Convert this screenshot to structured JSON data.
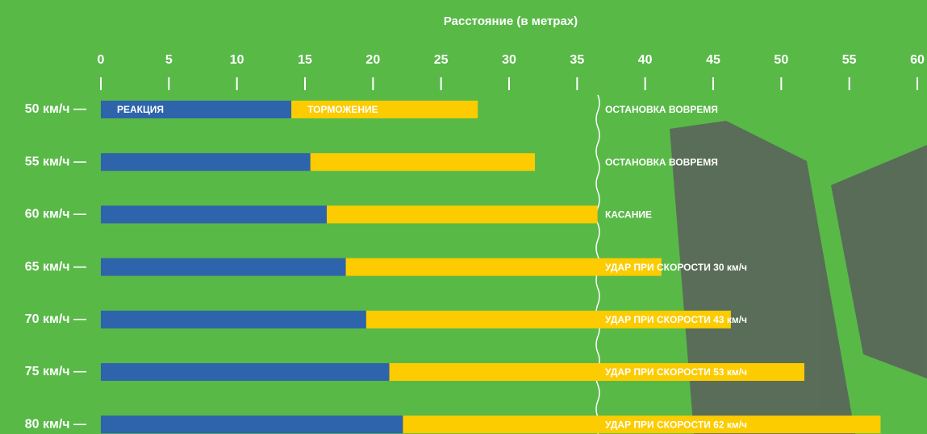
{
  "chart_data": {
    "type": "stacked-barh",
    "title": "Расстояние (в метрах)",
    "categories": [
      "50 км/ч —",
      "55 км/ч —",
      "60 км/ч —",
      "65 км/ч —",
      "70 км/ч —",
      "75 км/ч —",
      "80 км/ч —"
    ],
    "series": [
      {
        "name": "РЕАКЦИЯ",
        "color": "#2e64ab",
        "values": [
          14.0,
          15.4,
          16.6,
          18.0,
          19.5,
          21.2,
          22.2
        ]
      },
      {
        "name": "ТОРМОЖЕНИЕ",
        "color": "#fccb00",
        "values": [
          13.7,
          16.5,
          19.9,
          23.2,
          26.8,
          30.5,
          35.1
        ]
      }
    ],
    "annotations": [
      "ОСТАНОВКА ВОВРЕМЯ",
      "ОСТАНОВКА ВОВРЕМЯ",
      "КАСАНИЕ",
      "УДАР ПРИ СКОРОСТИ 30 км/ч",
      "УДАР ПРИ СКОРОСТИ 43 км/ч",
      "УДАР ПРИ СКОРОСТИ 53 км/ч",
      "УДАР ПРИ СКОРОСТИ 62 км/ч"
    ],
    "xlim": [
      0,
      60
    ],
    "xticks": [
      0,
      5,
      10,
      15,
      20,
      25,
      30,
      35,
      40,
      45,
      50,
      55,
      60
    ]
  }
}
